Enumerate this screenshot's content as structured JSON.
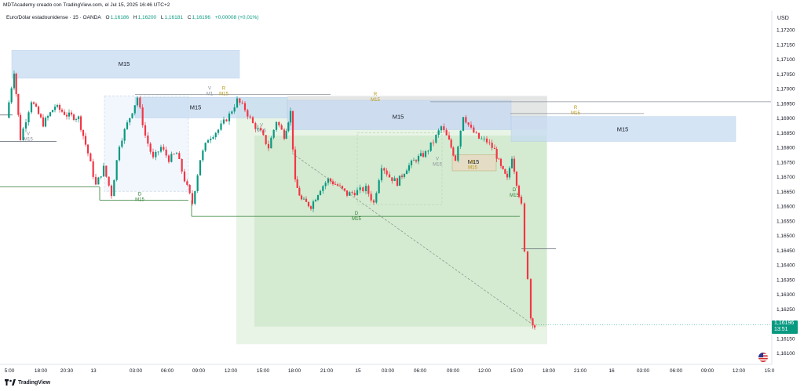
{
  "header": {
    "credit": "MDTAcademy creado con TradingView.com, el Jul 15, 2025 16:46 UTC+2",
    "symbol": "Euro/Dólar estadounidense · 15 · OANDA",
    "ohlc": [
      {
        "label": "O",
        "value": "1,16186"
      },
      {
        "label": "H",
        "value": "1,16200"
      },
      {
        "label": "L",
        "value": "1,16181"
      },
      {
        "label": "C",
        "value": "1,16196"
      }
    ],
    "change": "+0,00008 (+0,01%)"
  },
  "currency": "USD",
  "last_price": {
    "price": "1,16196",
    "countdown": "13:51"
  },
  "brand": "TradingView",
  "colors": {
    "up": "#089981",
    "down": "#f23645",
    "zone_blue": "#bbd3ef",
    "zone_green": "#cfe9cd",
    "zone_grey": "#d9d9d9",
    "label_gold": "#b8960c",
    "label_green": "#2e7d32"
  },
  "icons": [
    "tradingview-logo-icon",
    "us-flag-icon"
  ],
  "chart_data": {
    "type": "candlestick",
    "title": "Euro/Dólar estadounidense · 15 · OANDA",
    "ylim": [
      1.161,
      1.1722
    ],
    "price_ticks": [
      "1,17200",
      "1,17150",
      "1,17100",
      "1,17050",
      "1,17000",
      "1,16950",
      "1,16900",
      "1,16850",
      "1,16800",
      "1,16750",
      "1,16700",
      "1,16650",
      "1,16600",
      "1,16550",
      "1,16500",
      "1,16450",
      "1,16400",
      "1,16350",
      "1,16300",
      "1,16250",
      "1,16150",
      "1,16100"
    ],
    "time_ticks": [
      "5:00",
      "18:00",
      "20:30",
      "13",
      "03:00",
      "06:00",
      "09:00",
      "12:00",
      "15:00",
      "18:00",
      "21:00",
      "15",
      "03:00",
      "06:00",
      "09:00",
      "12:00",
      "15:00",
      "18:00",
      "21:00",
      "16",
      "03:00",
      "06:00",
      "09:00",
      "12:00",
      "15:0"
    ],
    "grid": false,
    "zones": [
      {
        "label": "M15",
        "color": "blue",
        "price_top": 1.1713,
        "price_bottom": 1.17035
      },
      {
        "label": "M15",
        "color": "blue",
        "price_top": 1.1697,
        "price_bottom": 1.169
      },
      {
        "label": "M15",
        "color": "blue",
        "price_top": 1.1696,
        "price_bottom": 1.1686
      },
      {
        "label": "M15",
        "color": "blue",
        "price_top": 1.16905,
        "price_bottom": 1.1682
      },
      {
        "label": "M15",
        "color": "tan",
        "price_top": 1.1678,
        "price_bottom": 1.1672
      }
    ],
    "level_labels": [
      {
        "text": "D",
        "sub": "M15",
        "price": 1.1662
      },
      {
        "text": "D",
        "sub": "M15",
        "price": 1.16545
      },
      {
        "text": "D",
        "sub": "M15",
        "price": 1.1663
      },
      {
        "text": "R",
        "sub": "M15",
        "price": 1.16975
      },
      {
        "text": "R",
        "sub": "M15",
        "price": 1.16915
      },
      {
        "text": "R",
        "sub": "M15",
        "price": 1.16725
      },
      {
        "text": "R",
        "sub": "M15",
        "price": 1.17
      },
      {
        "text": "V",
        "sub": "M15",
        "price": 1.1684
      },
      {
        "text": "V",
        "sub": "M15",
        "price": 1.1687
      },
      {
        "text": "V",
        "sub": "M15",
        "price": 1.16735
      },
      {
        "text": "V",
        "sub": "M1",
        "price": 1.17
      }
    ]
  }
}
